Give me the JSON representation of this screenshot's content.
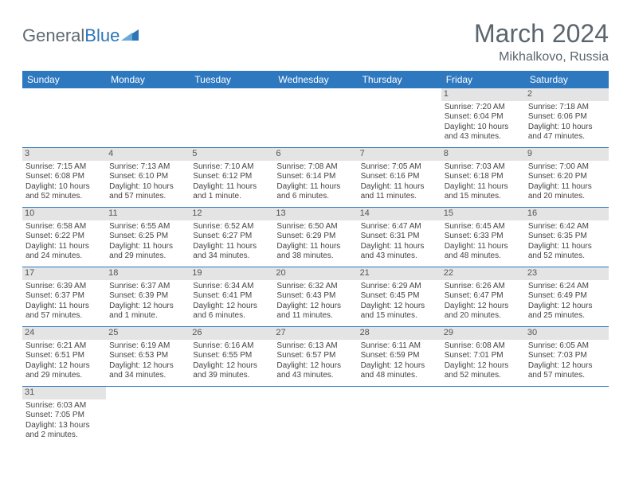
{
  "logo": {
    "general": "General",
    "blue": "Blue"
  },
  "title": {
    "month": "March 2024",
    "location": "Mikhalkovo, Russia"
  },
  "day_headers": [
    "Sunday",
    "Monday",
    "Tuesday",
    "Wednesday",
    "Thursday",
    "Friday",
    "Saturday"
  ],
  "colors": {
    "header_bg": "#2d78bf",
    "daynum_bg": "#e4e4e4",
    "text": "#444444",
    "title_text": "#5b656e",
    "divider": "#2d78bf",
    "logo_general": "#5f6a72",
    "logo_blue": "#2d75b6"
  },
  "weeks": [
    [
      null,
      null,
      null,
      null,
      null,
      {
        "d": "1",
        "sr": "Sunrise: 7:20 AM",
        "ss": "Sunset: 6:04 PM",
        "dl1": "Daylight: 10 hours",
        "dl2": "and 43 minutes."
      },
      {
        "d": "2",
        "sr": "Sunrise: 7:18 AM",
        "ss": "Sunset: 6:06 PM",
        "dl1": "Daylight: 10 hours",
        "dl2": "and 47 minutes."
      }
    ],
    [
      {
        "d": "3",
        "sr": "Sunrise: 7:15 AM",
        "ss": "Sunset: 6:08 PM",
        "dl1": "Daylight: 10 hours",
        "dl2": "and 52 minutes."
      },
      {
        "d": "4",
        "sr": "Sunrise: 7:13 AM",
        "ss": "Sunset: 6:10 PM",
        "dl1": "Daylight: 10 hours",
        "dl2": "and 57 minutes."
      },
      {
        "d": "5",
        "sr": "Sunrise: 7:10 AM",
        "ss": "Sunset: 6:12 PM",
        "dl1": "Daylight: 11 hours",
        "dl2": "and 1 minute."
      },
      {
        "d": "6",
        "sr": "Sunrise: 7:08 AM",
        "ss": "Sunset: 6:14 PM",
        "dl1": "Daylight: 11 hours",
        "dl2": "and 6 minutes."
      },
      {
        "d": "7",
        "sr": "Sunrise: 7:05 AM",
        "ss": "Sunset: 6:16 PM",
        "dl1": "Daylight: 11 hours",
        "dl2": "and 11 minutes."
      },
      {
        "d": "8",
        "sr": "Sunrise: 7:03 AM",
        "ss": "Sunset: 6:18 PM",
        "dl1": "Daylight: 11 hours",
        "dl2": "and 15 minutes."
      },
      {
        "d": "9",
        "sr": "Sunrise: 7:00 AM",
        "ss": "Sunset: 6:20 PM",
        "dl1": "Daylight: 11 hours",
        "dl2": "and 20 minutes."
      }
    ],
    [
      {
        "d": "10",
        "sr": "Sunrise: 6:58 AM",
        "ss": "Sunset: 6:22 PM",
        "dl1": "Daylight: 11 hours",
        "dl2": "and 24 minutes."
      },
      {
        "d": "11",
        "sr": "Sunrise: 6:55 AM",
        "ss": "Sunset: 6:25 PM",
        "dl1": "Daylight: 11 hours",
        "dl2": "and 29 minutes."
      },
      {
        "d": "12",
        "sr": "Sunrise: 6:52 AM",
        "ss": "Sunset: 6:27 PM",
        "dl1": "Daylight: 11 hours",
        "dl2": "and 34 minutes."
      },
      {
        "d": "13",
        "sr": "Sunrise: 6:50 AM",
        "ss": "Sunset: 6:29 PM",
        "dl1": "Daylight: 11 hours",
        "dl2": "and 38 minutes."
      },
      {
        "d": "14",
        "sr": "Sunrise: 6:47 AM",
        "ss": "Sunset: 6:31 PM",
        "dl1": "Daylight: 11 hours",
        "dl2": "and 43 minutes."
      },
      {
        "d": "15",
        "sr": "Sunrise: 6:45 AM",
        "ss": "Sunset: 6:33 PM",
        "dl1": "Daylight: 11 hours",
        "dl2": "and 48 minutes."
      },
      {
        "d": "16",
        "sr": "Sunrise: 6:42 AM",
        "ss": "Sunset: 6:35 PM",
        "dl1": "Daylight: 11 hours",
        "dl2": "and 52 minutes."
      }
    ],
    [
      {
        "d": "17",
        "sr": "Sunrise: 6:39 AM",
        "ss": "Sunset: 6:37 PM",
        "dl1": "Daylight: 11 hours",
        "dl2": "and 57 minutes."
      },
      {
        "d": "18",
        "sr": "Sunrise: 6:37 AM",
        "ss": "Sunset: 6:39 PM",
        "dl1": "Daylight: 12 hours",
        "dl2": "and 1 minute."
      },
      {
        "d": "19",
        "sr": "Sunrise: 6:34 AM",
        "ss": "Sunset: 6:41 PM",
        "dl1": "Daylight: 12 hours",
        "dl2": "and 6 minutes."
      },
      {
        "d": "20",
        "sr": "Sunrise: 6:32 AM",
        "ss": "Sunset: 6:43 PM",
        "dl1": "Daylight: 12 hours",
        "dl2": "and 11 minutes."
      },
      {
        "d": "21",
        "sr": "Sunrise: 6:29 AM",
        "ss": "Sunset: 6:45 PM",
        "dl1": "Daylight: 12 hours",
        "dl2": "and 15 minutes."
      },
      {
        "d": "22",
        "sr": "Sunrise: 6:26 AM",
        "ss": "Sunset: 6:47 PM",
        "dl1": "Daylight: 12 hours",
        "dl2": "and 20 minutes."
      },
      {
        "d": "23",
        "sr": "Sunrise: 6:24 AM",
        "ss": "Sunset: 6:49 PM",
        "dl1": "Daylight: 12 hours",
        "dl2": "and 25 minutes."
      }
    ],
    [
      {
        "d": "24",
        "sr": "Sunrise: 6:21 AM",
        "ss": "Sunset: 6:51 PM",
        "dl1": "Daylight: 12 hours",
        "dl2": "and 29 minutes."
      },
      {
        "d": "25",
        "sr": "Sunrise: 6:19 AM",
        "ss": "Sunset: 6:53 PM",
        "dl1": "Daylight: 12 hours",
        "dl2": "and 34 minutes."
      },
      {
        "d": "26",
        "sr": "Sunrise: 6:16 AM",
        "ss": "Sunset: 6:55 PM",
        "dl1": "Daylight: 12 hours",
        "dl2": "and 39 minutes."
      },
      {
        "d": "27",
        "sr": "Sunrise: 6:13 AM",
        "ss": "Sunset: 6:57 PM",
        "dl1": "Daylight: 12 hours",
        "dl2": "and 43 minutes."
      },
      {
        "d": "28",
        "sr": "Sunrise: 6:11 AM",
        "ss": "Sunset: 6:59 PM",
        "dl1": "Daylight: 12 hours",
        "dl2": "and 48 minutes."
      },
      {
        "d": "29",
        "sr": "Sunrise: 6:08 AM",
        "ss": "Sunset: 7:01 PM",
        "dl1": "Daylight: 12 hours",
        "dl2": "and 52 minutes."
      },
      {
        "d": "30",
        "sr": "Sunrise: 6:05 AM",
        "ss": "Sunset: 7:03 PM",
        "dl1": "Daylight: 12 hours",
        "dl2": "and 57 minutes."
      }
    ],
    [
      {
        "d": "31",
        "sr": "Sunrise: 6:03 AM",
        "ss": "Sunset: 7:05 PM",
        "dl1": "Daylight: 13 hours",
        "dl2": "and 2 minutes."
      },
      null,
      null,
      null,
      null,
      null,
      null
    ]
  ]
}
